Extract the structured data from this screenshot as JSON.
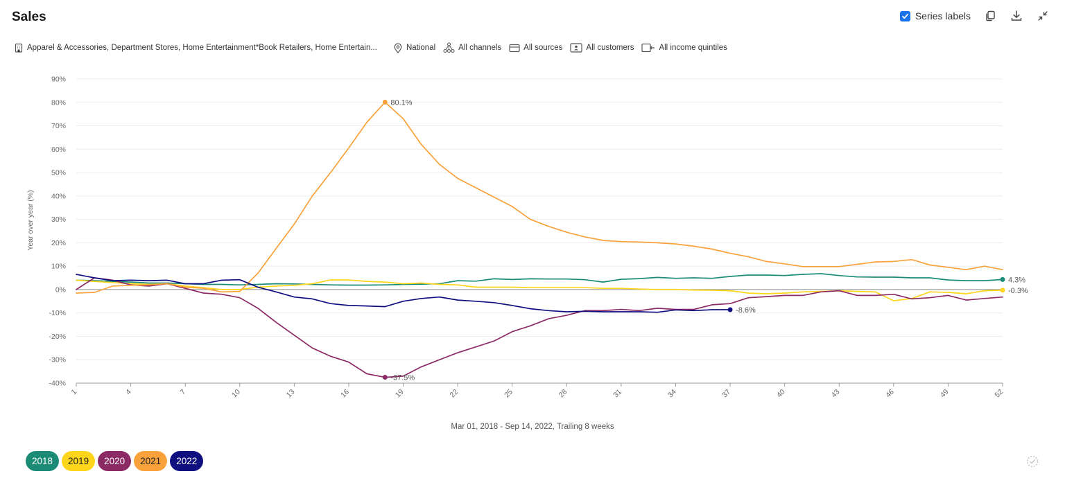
{
  "header": {
    "title": "Sales",
    "series_labels_text": "Series labels",
    "series_labels_checked": true
  },
  "icons": {
    "copy": "copy-icon",
    "download": "download-icon",
    "collapse": "collapse-icon",
    "loading": "loading-spinner-icon"
  },
  "filters": [
    {
      "icon": "building-icon",
      "text": "Apparel & Accessories, Department Stores, Home Entertainment*Book Retailers, Home Entertain..."
    },
    {
      "icon": "location-pin-icon",
      "text": "National"
    },
    {
      "icon": "channels-icon",
      "text": "All channels"
    },
    {
      "icon": "card-icon",
      "text": "All sources"
    },
    {
      "icon": "customer-card-icon",
      "text": "All customers"
    },
    {
      "icon": "wallet-icon",
      "text": "All income quintiles"
    }
  ],
  "footer": {
    "subtitle": "Mar 01, 2018 - Sep 14, 2022, Trailing 8 weeks"
  },
  "chart_data": {
    "type": "line",
    "title": "Sales",
    "xlabel": "",
    "ylabel": "Year over year (%)",
    "ylim": [
      -40,
      90
    ],
    "xlim": [
      1,
      52
    ],
    "yticks": [
      "-40%",
      "-30%",
      "-20%",
      "-10%",
      "0%",
      "10%",
      "20%",
      "30%",
      "40%",
      "50%",
      "60%",
      "70%",
      "80%",
      "90%"
    ],
    "xticks": [
      "1",
      "4",
      "7",
      "10",
      "13",
      "16",
      "19",
      "22",
      "25",
      "28",
      "31",
      "34",
      "37",
      "40",
      "43",
      "46",
      "49",
      "52"
    ],
    "grid": true,
    "legend_position": "bottom-left",
    "series": [
      {
        "name": "2018",
        "color": "#1b8b76",
        "x": [
          1,
          2,
          3,
          4,
          5,
          6,
          7,
          8,
          9,
          10,
          11,
          12,
          13,
          14,
          15,
          16,
          17,
          18,
          19,
          20,
          21,
          22,
          23,
          24,
          25,
          26,
          27,
          28,
          29,
          30,
          31,
          32,
          33,
          34,
          35,
          36,
          37,
          38,
          39,
          40,
          41,
          42,
          43,
          44,
          45,
          46,
          47,
          48,
          49,
          50,
          51,
          52
        ],
        "values": [
          4.0,
          3.8,
          3.5,
          3.2,
          2.8,
          2.8,
          2.5,
          2.2,
          2.2,
          2.0,
          2.2,
          2.5,
          2.4,
          2.2,
          2.0,
          1.9,
          1.9,
          2.0,
          2.2,
          2.3,
          2.5,
          3.8,
          3.6,
          4.6,
          4.3,
          4.6,
          4.5,
          4.5,
          4.2,
          3.2,
          4.4,
          4.7,
          5.2,
          4.8,
          5.0,
          4.8,
          5.6,
          6.2,
          6.2,
          6.0,
          6.5,
          6.8,
          6.0,
          5.4,
          5.3,
          5.3,
          5.0,
          5.0,
          4.1,
          3.8,
          3.8,
          4.3
        ],
        "end_label": "4.3%"
      },
      {
        "name": "2019",
        "color": "#fdd51a",
        "x": [
          1,
          2,
          3,
          4,
          5,
          6,
          7,
          8,
          9,
          10,
          11,
          12,
          13,
          14,
          15,
          16,
          17,
          18,
          19,
          20,
          21,
          22,
          23,
          24,
          25,
          26,
          27,
          28,
          29,
          30,
          31,
          32,
          33,
          34,
          35,
          36,
          37,
          38,
          39,
          40,
          41,
          42,
          43,
          44,
          45,
          46,
          47,
          48,
          49,
          50,
          51,
          52
        ],
        "values": [
          4.0,
          3.5,
          3.0,
          2.5,
          2.2,
          2.5,
          1.5,
          0.8,
          0.0,
          0.0,
          1.0,
          1.5,
          1.8,
          2.5,
          4.1,
          4.1,
          3.5,
          3.2,
          2.5,
          2.8,
          2.2,
          2.0,
          1.0,
          1.0,
          1.0,
          0.8,
          0.8,
          0.8,
          0.8,
          0.5,
          0.5,
          0.2,
          0.0,
          0.0,
          -0.2,
          -0.3,
          -0.5,
          -1.5,
          -1.8,
          -1.5,
          -1.0,
          -0.8,
          -0.5,
          -0.8,
          -1.0,
          -4.8,
          -3.8,
          -1.0,
          -1.2,
          -1.8,
          -0.5,
          -0.3
        ],
        "end_label": "-0.3%"
      },
      {
        "name": "2020",
        "color": "#8b2a64",
        "x": [
          1,
          2,
          3,
          4,
          5,
          6,
          7,
          8,
          9,
          10,
          11,
          12,
          13,
          14,
          15,
          16,
          17,
          18,
          19,
          20,
          21,
          22,
          23,
          24,
          25,
          26,
          27,
          28,
          29,
          30,
          31,
          32,
          33,
          34,
          35,
          36,
          37,
          38,
          39,
          40,
          41,
          42,
          43,
          44,
          45,
          46,
          47,
          48,
          49,
          50,
          51,
          52
        ],
        "values": [
          0.0,
          5.0,
          4.0,
          2.0,
          1.5,
          2.5,
          0.5,
          -1.5,
          -2.0,
          -3.5,
          -8.0,
          -14.0,
          -19.5,
          -25.0,
          -28.5,
          -31.0,
          -36.0,
          -37.5,
          -37.0,
          -33.0,
          -30.0,
          -27.0,
          -24.5,
          -22.0,
          -18.0,
          -15.5,
          -12.5,
          -11.0,
          -9.0,
          -9.0,
          -8.5,
          -9.0,
          -8.0,
          -8.5,
          -8.5,
          -6.5,
          -6.0,
          -3.5,
          -3.0,
          -2.5,
          -2.5,
          -1.0,
          -0.5,
          -2.5,
          -2.5,
          -2.0,
          -4.0,
          -3.5,
          -2.5,
          -4.5,
          -3.8,
          -3.2
        ],
        "marker": {
          "x": 18,
          "y": -37.5,
          "label": "-37.5%"
        }
      },
      {
        "name": "2021",
        "color": "#f9a23b",
        "x": [
          1,
          2,
          3,
          4,
          5,
          6,
          7,
          8,
          9,
          10,
          11,
          12,
          13,
          14,
          15,
          16,
          17,
          18,
          19,
          20,
          21,
          22,
          23,
          24,
          25,
          26,
          27,
          28,
          29,
          30,
          31,
          32,
          33,
          34,
          35,
          36,
          37,
          38,
          39,
          40,
          41,
          42,
          43,
          44,
          45,
          46,
          47,
          48,
          49,
          50,
          51,
          52
        ],
        "values": [
          -1.5,
          -1.2,
          1.5,
          1.8,
          2.0,
          2.5,
          1.0,
          0.5,
          -1.0,
          -0.8,
          7.0,
          17.5,
          28.0,
          40.0,
          50.0,
          60.5,
          71.5,
          80.1,
          73.0,
          62.0,
          53.5,
          47.5,
          43.5,
          39.5,
          35.5,
          30.0,
          27.0,
          24.5,
          22.5,
          21.0,
          20.5,
          20.3,
          20.0,
          19.5,
          18.5,
          17.3,
          15.5,
          14.0,
          12.0,
          11.0,
          9.8,
          9.8,
          9.8,
          10.8,
          11.8,
          12.0,
          12.8,
          10.5,
          9.5,
          8.5,
          10.0,
          8.5
        ],
        "marker": {
          "x": 18,
          "y": 80.1,
          "label": "80.1%"
        }
      },
      {
        "name": "2022",
        "color": "#0f0f80",
        "x": [
          1,
          2,
          3,
          4,
          5,
          6,
          7,
          8,
          9,
          10,
          11,
          12,
          13,
          14,
          15,
          16,
          17,
          18,
          19,
          20,
          21,
          22,
          23,
          24,
          25,
          26,
          27,
          28,
          29,
          30,
          31,
          32,
          33,
          34,
          35,
          36,
          37
        ],
        "values": [
          6.5,
          5.0,
          3.8,
          4.0,
          3.8,
          4.0,
          2.5,
          2.5,
          4.0,
          4.2,
          1.0,
          -1.0,
          -3.2,
          -4.0,
          -6.0,
          -6.8,
          -7.0,
          -7.3,
          -5.0,
          -3.8,
          -3.2,
          -4.5,
          -5.0,
          -5.6,
          -6.8,
          -8.2,
          -9.0,
          -9.5,
          -9.3,
          -9.5,
          -9.5,
          -9.5,
          -9.7,
          -8.7,
          -9.0,
          -8.6,
          -8.6
        ],
        "end_label": "-8.6%"
      }
    ]
  }
}
